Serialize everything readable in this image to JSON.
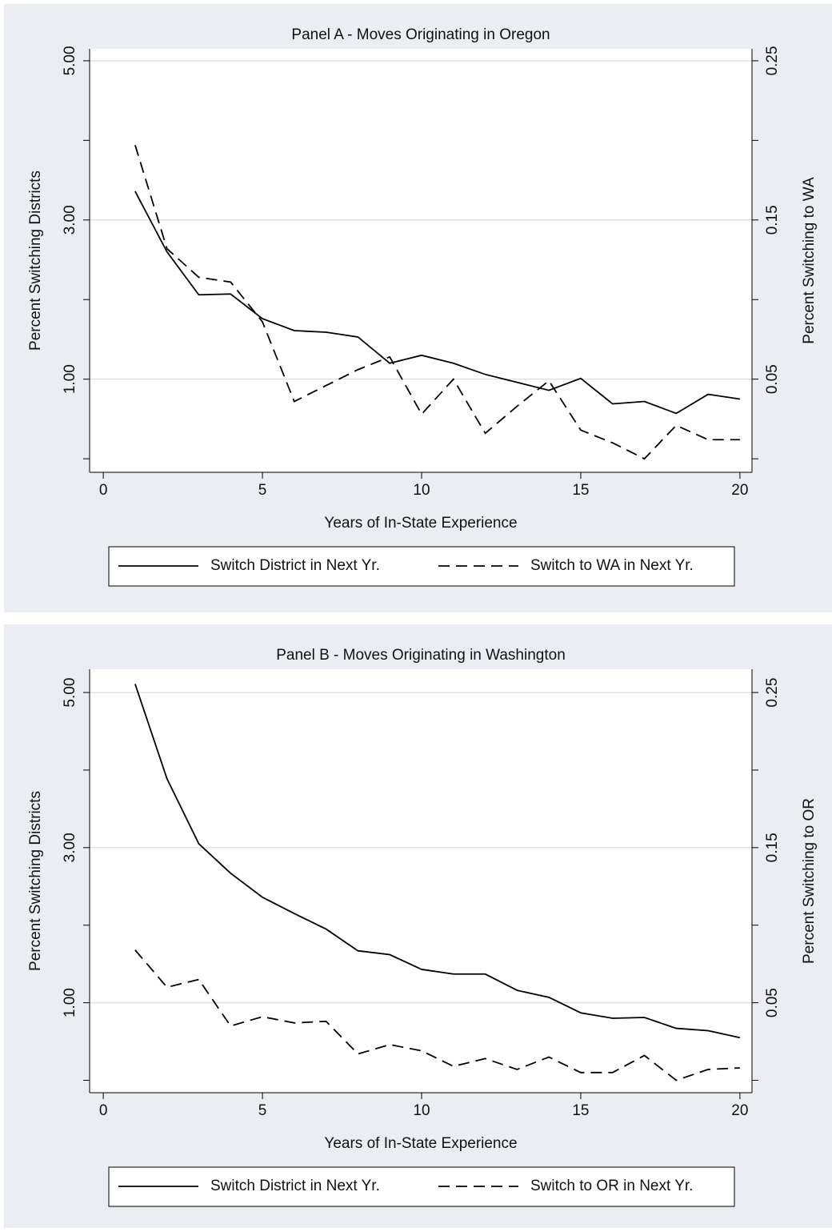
{
  "chart_data": [
    {
      "type": "line",
      "title": "Panel A - Moves Originating in Oregon",
      "xlabel": "Years of In-State Experience",
      "ylabel": "Percent Switching Districts",
      "y2label": "Percent Switching to WA",
      "x": [
        1,
        2,
        3,
        4,
        5,
        6,
        7,
        8,
        9,
        10,
        11,
        12,
        13,
        14,
        15,
        16,
        17,
        18,
        19,
        20
      ],
      "series": [
        {
          "name": "Switch District in Next Yr.",
          "color": "#000000",
          "style": "solid",
          "axis": "y",
          "values": [
            3.36,
            2.6,
            2.06,
            2.07,
            1.76,
            1.61,
            1.59,
            1.53,
            1.2,
            1.3,
            1.2,
            1.06,
            0.96,
            0.86,
            1.01,
            0.69,
            0.72,
            0.57,
            0.81,
            0.75
          ]
        },
        {
          "name": "Switch to WA in Next Yr.",
          "color": "#000000",
          "style": "dashed",
          "axis": "y2",
          "values": [
            0.197,
            0.132,
            0.114,
            0.111,
            0.086,
            0.036,
            0.046,
            0.056,
            0.064,
            0.028,
            0.05,
            0.016,
            0.033,
            0.049,
            0.018,
            0.01,
            0.0,
            0.021,
            0.012,
            0.012
          ]
        }
      ],
      "xlim": [
        -0.43,
        20.38
      ],
      "xticks": [
        0,
        5,
        10,
        15,
        20
      ],
      "ylim": [
        -0.17,
        5.15
      ],
      "yticks": [
        {
          "value": 1,
          "label": "1.00"
        },
        {
          "value": 3,
          "label": "3.00"
        },
        {
          "value": 5,
          "label": "5.00"
        }
      ],
      "yminorticks": [
        0,
        2,
        4
      ],
      "y2lim": [
        -0.0085,
        0.2575
      ],
      "y2ticks": [
        {
          "value": 0.05,
          "label": "0.05"
        },
        {
          "value": 0.15,
          "label": "0.15"
        },
        {
          "value": 0.25,
          "label": "0.25"
        }
      ],
      "y2minorticks": [
        0,
        0.1,
        0.2
      ],
      "grid": true
    },
    {
      "type": "line",
      "title": "Panel B - Moves Originating in Washington",
      "xlabel": "Years of In-State Experience",
      "ylabel": "Percent Switching Districts",
      "y2label": "Percent Switching to OR",
      "x": [
        1,
        2,
        3,
        4,
        5,
        6,
        7,
        8,
        9,
        10,
        11,
        12,
        13,
        14,
        15,
        16,
        17,
        18,
        19,
        20
      ],
      "series": [
        {
          "name": "Switch District in Next Yr.",
          "color": "#000000",
          "style": "solid",
          "axis": "y",
          "values": [
            5.11,
            3.89,
            3.05,
            2.67,
            2.36,
            2.15,
            1.95,
            1.67,
            1.62,
            1.43,
            1.37,
            1.37,
            1.16,
            1.07,
            0.87,
            0.8,
            0.81,
            0.67,
            0.64,
            0.55
          ]
        },
        {
          "name": "Switch to OR in Next Yr.",
          "color": "#000000",
          "style": "dashed",
          "axis": "y2",
          "values": [
            0.084,
            0.06,
            0.065,
            0.035,
            0.041,
            0.037,
            0.038,
            0.017,
            0.023,
            0.019,
            0.009,
            0.014,
            0.007,
            0.015,
            0.005,
            0.005,
            0.016,
            0.0,
            0.007,
            0.008
          ]
        }
      ],
      "xlim": [
        -0.43,
        20.38
      ],
      "xticks": [
        0,
        5,
        10,
        15,
        20
      ],
      "ylim": [
        -0.16,
        5.3
      ],
      "yticks": [
        {
          "value": 1,
          "label": "1.00"
        },
        {
          "value": 3,
          "label": "3.00"
        },
        {
          "value": 5,
          "label": "5.00"
        }
      ],
      "yminorticks": [
        0,
        2,
        4
      ],
      "y2lim": [
        -0.008,
        0.265
      ],
      "y2ticks": [
        {
          "value": 0.05,
          "label": "0.05"
        },
        {
          "value": 0.15,
          "label": "0.15"
        },
        {
          "value": 0.25,
          "label": "0.25"
        }
      ],
      "y2minorticks": [
        0,
        0.1,
        0.2
      ],
      "grid": true
    }
  ]
}
